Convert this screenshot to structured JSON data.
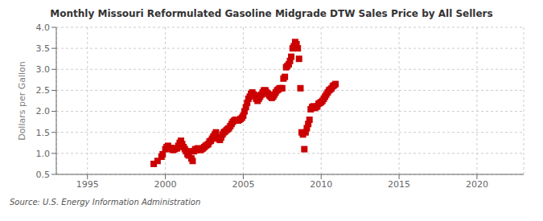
{
  "chart_data": {
    "type": "scatter",
    "title": "Monthly Missouri Reformulated Gasoline Midgrade DTW Sales Price by All Sellers",
    "ylabel": "Dollars per Gallon",
    "annotations": [
      "Source: U.S. Energy Information Administration"
    ],
    "color": "#cc0000",
    "marker": "square",
    "grid": true,
    "xlim": [
      1993,
      2023
    ],
    "ylim": [
      0.5,
      4.0
    ],
    "xticks": [
      1995,
      2000,
      2005,
      2010,
      2015,
      2020
    ],
    "yticks": [
      0.5,
      {
        "value": 1.0,
        "label": "1.0"
      },
      1.5,
      {
        "value": 2.0,
        "label": "2.0"
      },
      2.5,
      {
        "value": 3.0,
        "label": "3.0"
      },
      3.5,
      {
        "value": 4.0,
        "label": "4.0"
      }
    ],
    "x": [
      1999.25,
      1999.5,
      1999.75,
      1999.83,
      2000.0,
      2000.08,
      2000.17,
      2000.25,
      2000.33,
      2000.42,
      2000.5,
      2000.58,
      2000.67,
      2000.75,
      2000.83,
      2000.92,
      2001.0,
      2001.08,
      2001.17,
      2001.25,
      2001.33,
      2001.42,
      2001.5,
      2001.58,
      2001.67,
      2001.75,
      2001.83,
      2001.92,
      2002.0,
      2002.08,
      2002.17,
      2002.25,
      2002.33,
      2002.42,
      2002.5,
      2002.58,
      2002.67,
      2002.75,
      2002.83,
      2002.92,
      2003.0,
      2003.08,
      2003.17,
      2003.25,
      2003.33,
      2003.42,
      2003.5,
      2003.58,
      2003.67,
      2003.75,
      2003.83,
      2003.92,
      2004.0,
      2004.08,
      2004.17,
      2004.25,
      2004.33,
      2004.42,
      2004.5,
      2004.58,
      2004.67,
      2004.75,
      2004.83,
      2004.92,
      2005.0,
      2005.08,
      2005.17,
      2005.25,
      2005.33,
      2005.42,
      2005.5,
      2005.58,
      2005.67,
      2005.75,
      2005.83,
      2005.92,
      2006.0,
      2006.08,
      2006.17,
      2006.25,
      2006.33,
      2006.42,
      2006.5,
      2006.58,
      2006.67,
      2006.75,
      2006.83,
      2006.92,
      2007.0,
      2007.08,
      2007.17,
      2007.25,
      2007.33,
      2007.42,
      2007.5,
      2007.58,
      2007.67,
      2007.75,
      2007.83,
      2007.92,
      2008.0,
      2008.08,
      2008.17,
      2008.25,
      2008.33,
      2008.42,
      2008.5,
      2008.58,
      2008.67,
      2008.75,
      2008.83,
      2008.92,
      2009.0,
      2009.08,
      2009.17,
      2009.25,
      2009.33,
      2009.42,
      2009.5,
      2009.58,
      2009.67,
      2009.75,
      2009.83,
      2009.92,
      2010.0,
      2010.08,
      2010.17,
      2010.25,
      2010.33,
      2010.42,
      2010.5,
      2010.58,
      2010.67,
      2010.75,
      2010.83,
      2010.92
    ],
    "values": [
      0.75,
      0.82,
      0.92,
      0.98,
      1.1,
      1.15,
      1.18,
      1.12,
      1.13,
      1.1,
      1.08,
      1.1,
      1.12,
      1.12,
      1.18,
      1.25,
      1.3,
      1.22,
      1.15,
      1.1,
      1.05,
      0.98,
      0.95,
      1.05,
      0.88,
      0.82,
      1.05,
      1.1,
      1.08,
      1.12,
      1.1,
      1.08,
      1.1,
      1.12,
      1.15,
      1.18,
      1.2,
      1.22,
      1.28,
      1.3,
      1.35,
      1.4,
      1.45,
      1.5,
      1.38,
      1.35,
      1.32,
      1.38,
      1.45,
      1.5,
      1.52,
      1.55,
      1.58,
      1.6,
      1.65,
      1.7,
      1.75,
      1.78,
      1.8,
      1.8,
      1.78,
      1.8,
      1.82,
      1.85,
      1.9,
      2.0,
      2.1,
      2.2,
      2.3,
      2.35,
      2.42,
      2.45,
      2.4,
      2.38,
      2.3,
      2.25,
      2.3,
      2.35,
      2.4,
      2.45,
      2.5,
      2.5,
      2.45,
      2.42,
      2.38,
      2.35,
      2.32,
      2.35,
      2.4,
      2.45,
      2.5,
      2.52,
      2.55,
      2.55,
      2.55,
      2.78,
      2.82,
      3.05,
      3.08,
      3.12,
      3.2,
      3.3,
      3.5,
      3.55,
      3.65,
      3.6,
      3.5,
      3.25,
      2.55,
      1.5,
      1.45,
      1.1,
      1.5,
      1.6,
      1.7,
      1.8,
      2.05,
      2.1,
      2.12,
      2.08,
      2.1,
      2.12,
      2.18,
      2.2,
      2.22,
      2.25,
      2.3,
      2.35,
      2.4,
      2.45,
      2.5,
      2.52,
      2.55,
      2.6,
      2.62,
      2.65
    ]
  }
}
